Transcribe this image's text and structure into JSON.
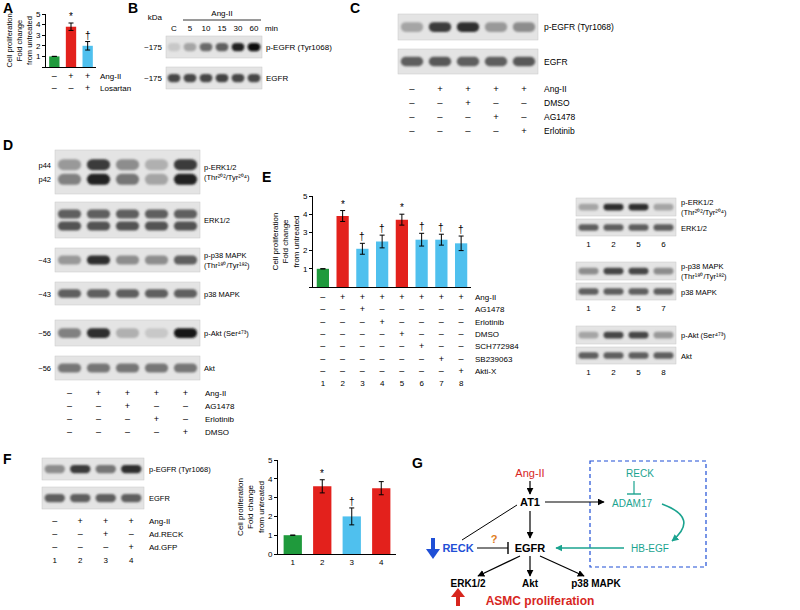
{
  "chart_data": [
    {
      "type": "bar",
      "y_label": [
        "Cell proliferation",
        "Fold change",
        "from untreated"
      ],
      "categories": [
        null,
        null,
        null
      ],
      "values": [
        1,
        3.8,
        2.0
      ],
      "error": [
        0,
        0.35,
        0.4
      ],
      "colors": [
        "#1f9a3c",
        "#e3211c",
        "#4fc0ee"
      ],
      "annotations": [
        null,
        "*",
        "†"
      ],
      "ylim": [
        0,
        5
      ],
      "yticks": [
        0,
        1,
        2,
        3,
        4,
        5
      ],
      "tick_labels": "y",
      "grid": false
    },
    {
      "type": "bar",
      "y_label": [
        "Cell proliferation",
        "Fold change",
        "from untreated"
      ],
      "categories": [
        null,
        null,
        null,
        null,
        null,
        null,
        null,
        null
      ],
      "values": [
        1,
        3.9,
        2.1,
        2.5,
        3.7,
        2.6,
        2.6,
        2.4
      ],
      "error": [
        0,
        0.3,
        0.3,
        0.35,
        0.3,
        0.35,
        0.3,
        0.4
      ],
      "colors": [
        "#1f9a3c",
        "#e3211c",
        "#4fc0ee",
        "#4fc0ee",
        "#e3211c",
        "#4fc0ee",
        "#4fc0ee",
        "#4fc0ee"
      ],
      "annotations": [
        null,
        "*",
        "†",
        "†",
        "*",
        "†",
        "†",
        "†"
      ],
      "ylim": [
        0,
        5
      ],
      "yticks": [
        0,
        1,
        2,
        3,
        4,
        5
      ],
      "tick_labels": "y",
      "grid": false
    },
    {
      "type": "bar",
      "y_label": [
        "Cell proliferation",
        "Fold change",
        "from untreated"
      ],
      "categories": [
        "1",
        "2",
        "3",
        "4"
      ],
      "values": [
        1,
        3.6,
        2.0,
        3.5
      ],
      "error": [
        0,
        0.35,
        0.45,
        0.35
      ],
      "colors": [
        "#1f9a3c",
        "#e3211c",
        "#4fc0ee",
        "#e3211c"
      ],
      "annotations": [
        null,
        "*",
        "†",
        null
      ],
      "ylim": [
        0,
        5
      ],
      "yticks": [
        0,
        1,
        2,
        3,
        4,
        5
      ],
      "tick_labels": true,
      "grid": false
    }
  ],
  "figure": {
    "A": {
      "label": "A",
      "table": {
        "rows": [
          {
            "name": "Ang-II",
            "signs": [
              "–",
              "+",
              "+"
            ]
          },
          {
            "name": "Losartan",
            "signs": [
              "–",
              "–",
              "+"
            ]
          }
        ]
      }
    },
    "B": {
      "label": "B",
      "kda": "kDa",
      "lane_labels": [
        "C",
        "5",
        "10",
        "15",
        "30",
        "60"
      ],
      "group": "Ang-II",
      "unit": "min",
      "blots": [
        {
          "mw": "~175",
          "name": "p-EGFR (Tyr1068)",
          "bands": [
            [
              0.15,
              0.3,
              0.55,
              0.6,
              0.85,
              0.95
            ]
          ]
        },
        {
          "mw": "~175",
          "name": "EGFR",
          "bands": [
            [
              0.7,
              0.7,
              0.7,
              0.72,
              0.7,
              0.7
            ]
          ]
        }
      ]
    },
    "C": {
      "label": "C",
      "blots": [
        {
          "name": "p-EGFR (Tyr1068)",
          "bands": [
            [
              0.3,
              0.75,
              0.8,
              0.35,
              0.4
            ]
          ]
        },
        {
          "name": "EGFR",
          "bands": [
            [
              0.6,
              0.62,
              0.6,
              0.6,
              0.62
            ]
          ]
        }
      ],
      "table": {
        "rows": [
          {
            "name": "Ang-II",
            "signs": [
              "–",
              "+",
              "+",
              "+",
              "+"
            ]
          },
          {
            "name": "DMSO",
            "signs": [
              "–",
              "–",
              "+",
              "–",
              "–"
            ]
          },
          {
            "name": "AG1478",
            "signs": [
              "–",
              "–",
              "–",
              "+",
              "–"
            ]
          },
          {
            "name": "Erlotinib",
            "signs": [
              "–",
              "–",
              "–",
              "–",
              "+"
            ]
          }
        ]
      }
    },
    "D": {
      "label": "D",
      "blots": [
        {
          "band_labels": [
            "p44",
            "p42"
          ],
          "name": [
            "p-ERK1/2",
            "(Thr²⁰²/Tyr²⁰⁴)"
          ],
          "bands": [
            [
              0.35,
              0.75,
              0.4,
              0.25,
              0.75
            ],
            [
              0.45,
              0.85,
              0.5,
              0.3,
              0.85
            ]
          ]
        },
        {
          "name": "ERK1/2",
          "bands": [
            [
              0.6,
              0.6,
              0.6,
              0.6,
              0.6
            ],
            [
              0.65,
              0.65,
              0.65,
              0.65,
              0.65
            ]
          ]
        },
        {
          "mw": "~43",
          "name": [
            "p-p38 MAPK",
            "(Thr¹⁸⁰/Tyr¹⁸²)"
          ],
          "bands": [
            [
              0.35,
              0.8,
              0.4,
              0.4,
              0.6
            ]
          ]
        },
        {
          "mw": "~43",
          "name": "p38 MAPK",
          "bands": [
            [
              0.6,
              0.6,
              0.6,
              0.6,
              0.6
            ]
          ]
        },
        {
          "mw": "~56",
          "name": "p-Akt (Ser⁴⁷³)",
          "bands": [
            [
              0.45,
              0.8,
              0.25,
              0.15,
              0.9
            ]
          ]
        },
        {
          "mw": "~56",
          "name": "Akt",
          "bands": [
            [
              0.5,
              0.5,
              0.5,
              0.5,
              0.5
            ]
          ]
        }
      ],
      "table": {
        "rows": [
          {
            "name": "Ang-II",
            "signs": [
              "–",
              "+",
              "+",
              "+",
              "+"
            ]
          },
          {
            "name": "AG1478",
            "signs": [
              "–",
              "–",
              "+",
              "–",
              "–"
            ]
          },
          {
            "name": "Erlotinib",
            "signs": [
              "–",
              "–",
              "–",
              "+",
              "–"
            ]
          },
          {
            "name": "DMSO",
            "signs": [
              "–",
              "–",
              "–",
              "–",
              "+"
            ]
          }
        ]
      }
    },
    "E": {
      "label": "E",
      "table": {
        "rows": [
          {
            "name": "Ang-II",
            "signs": [
              "–",
              "+",
              "+",
              "+",
              "+",
              "+",
              "+",
              "+"
            ]
          },
          {
            "name": "AG1478",
            "signs": [
              "–",
              "–",
              "+",
              "–",
              "–",
              "–",
              "–",
              "–"
            ]
          },
          {
            "name": "Erlotinib",
            "signs": [
              "–",
              "–",
              "–",
              "+",
              "–",
              "–",
              "–",
              "–"
            ]
          },
          {
            "name": "DMSO",
            "signs": [
              "–",
              "–",
              "–",
              "–",
              "+",
              "–",
              "–",
              "–"
            ]
          },
          {
            "name": "SCH772984",
            "signs": [
              "–",
              "–",
              "–",
              "–",
              "–",
              "+",
              "–",
              "–"
            ]
          },
          {
            "name": "SB239063",
            "signs": [
              "–",
              "–",
              "–",
              "–",
              "–",
              "–",
              "+",
              "–"
            ]
          },
          {
            "name": "Akti-X",
            "signs": [
              "–",
              "–",
              "–",
              "–",
              "–",
              "–",
              "–",
              "+"
            ]
          }
        ],
        "lanes": [
          "1",
          "2",
          "3",
          "4",
          "5",
          "6",
          "7",
          "8"
        ]
      },
      "blot_groups": [
        {
          "lanes": [
            "1",
            "2",
            "5",
            "6"
          ],
          "blots": [
            {
              "name": [
                "p-ERK1/2",
                "(Thr²⁰²/Tyr²⁰⁴)"
              ],
              "bands": [
                [
                  0.3,
                  0.8,
                  0.8,
                  0.3
                ]
              ]
            },
            {
              "name": "ERK1/2",
              "bands": [
                [
                  0.6,
                  0.6,
                  0.6,
                  0.6
                ]
              ]
            }
          ]
        },
        {
          "lanes": [
            "1",
            "2",
            "5",
            "7"
          ],
          "blots": [
            {
              "name": [
                "p-p38 MAPK",
                "(Thr¹⁸⁰/Tyr¹⁸²)"
              ],
              "bands": [
                [
                  0.4,
                  0.7,
                  0.7,
                  0.4
                ]
              ]
            },
            {
              "name": "p38 MAPK",
              "bands": [
                [
                  0.6,
                  0.6,
                  0.6,
                  0.6
                ]
              ]
            }
          ]
        },
        {
          "lanes": [
            "1",
            "2",
            "5",
            "8"
          ],
          "blots": [
            {
              "name": "p-Akt (Ser⁴⁷³)",
              "bands": [
                [
                  0.3,
                  0.7,
                  0.7,
                  0.35
                ]
              ]
            },
            {
              "name": "Akt",
              "bands": [
                [
                  0.6,
                  0.6,
                  0.6,
                  0.6
                ]
              ]
            }
          ]
        }
      ]
    },
    "F": {
      "label": "F",
      "blots": [
        {
          "name": "p-EGFR (Tyr1068)",
          "bands": [
            [
              0.4,
              0.75,
              0.5,
              0.8
            ]
          ]
        },
        {
          "name": "EGFR",
          "bands": [
            [
              0.6,
              0.6,
              0.6,
              0.6
            ]
          ]
        }
      ],
      "table": {
        "rows": [
          {
            "name": "Ang-II",
            "signs": [
              "–",
              "+",
              "+",
              "+"
            ]
          },
          {
            "name": "Ad.RECK",
            "signs": [
              "–",
              "–",
              "+",
              "–"
            ]
          },
          {
            "name": "Ad.GFP",
            "signs": [
              "–",
              "–",
              "–",
              "+"
            ]
          }
        ],
        "lanes": [
          "1",
          "2",
          "3",
          "4"
        ]
      }
    },
    "G": {
      "label": "G",
      "nodes": {
        "ang": "Ang-II",
        "at1": "AT1",
        "reck_box": "RECK",
        "adam17": "ADAM17",
        "hbegf": "HB-EGF",
        "reck": "RECK",
        "egfr": "EGFR",
        "question": "?",
        "erk": "ERK1/2",
        "akt": "Akt",
        "p38": "p38 MAPK",
        "outcome": "ASMC proliferation"
      }
    }
  }
}
